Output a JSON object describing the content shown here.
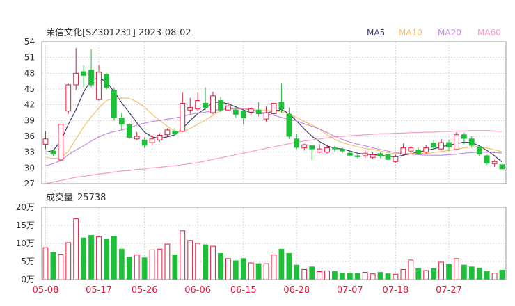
{
  "header": {
    "title": "荣信文化[SZ301231] 2023-08-02",
    "legend": [
      {
        "label": "MA5",
        "color": "#3d3d6b"
      },
      {
        "label": "MA10",
        "color": "#f5c26b"
      },
      {
        "label": "MA20",
        "color": "#c58be0"
      },
      {
        "label": "MA60",
        "color": "#f49ac7"
      }
    ]
  },
  "colors": {
    "up": "#e8173a",
    "down": "#1fbf3a",
    "grid": "#d6d6d6",
    "axis": "#333333"
  },
  "volume_panel": {
    "title_label": "成交量",
    "title_value": "25738"
  },
  "chart_data": [
    {
      "type": "candlestick",
      "title": "荣信文化[SZ301231] 2023-08-02",
      "ylim": [
        27,
        54
      ],
      "yticks": [
        "54",
        "51",
        "48",
        "45",
        "42",
        "39",
        "36",
        "33",
        "30",
        "27"
      ],
      "xticks": [
        {
          "index": 0,
          "label": "05-08"
        },
        {
          "index": 7,
          "label": "05-17"
        },
        {
          "index": 13,
          "label": "05-26"
        },
        {
          "index": 20,
          "label": "06-06"
        },
        {
          "index": 26,
          "label": "06-15"
        },
        {
          "index": 33,
          "label": "06-28"
        },
        {
          "index": 40,
          "label": "07-07"
        },
        {
          "index": 46,
          "label": "07-18"
        },
        {
          "index": 53,
          "label": "07-27"
        }
      ],
      "candles": [
        [
          34.5,
          35.5,
          33.5,
          37.0
        ],
        [
          33.2,
          32.6,
          32.3,
          33.5
        ],
        [
          31.5,
          38.3,
          31.2,
          38.4
        ],
        [
          40.8,
          45.8,
          40.3,
          46.0
        ],
        [
          45.8,
          48.0,
          44.8,
          52.8
        ],
        [
          48.3,
          47.6,
          45.3,
          49.5
        ],
        [
          48.6,
          45.8,
          45.3,
          52.6
        ],
        [
          43.0,
          48.2,
          42.8,
          49.5
        ],
        [
          47.8,
          45.3,
          44.8,
          48.0
        ],
        [
          44.8,
          39.6,
          39.0,
          45.3
        ],
        [
          39.5,
          38.3,
          37.3,
          40.5
        ],
        [
          38.2,
          35.8,
          35.5,
          38.5
        ],
        [
          35.5,
          36.0,
          35.3,
          36.8
        ],
        [
          35.3,
          34.3,
          33.8,
          35.8
        ],
        [
          34.8,
          35.5,
          34.3,
          36.3
        ],
        [
          35.3,
          36.2,
          35.0,
          36.6
        ],
        [
          36.3,
          37.2,
          36.0,
          37.5
        ],
        [
          37.0,
          36.5,
          36.2,
          37.6
        ],
        [
          37.0,
          42.3,
          36.8,
          44.3
        ],
        [
          41.0,
          41.5,
          40.3,
          43.3
        ],
        [
          41.2,
          42.8,
          40.8,
          44.3
        ],
        [
          42.3,
          41.5,
          41.0,
          45.3
        ],
        [
          40.5,
          43.7,
          40.2,
          44.5
        ],
        [
          42.8,
          41.0,
          40.6,
          43.5
        ],
        [
          41.0,
          41.8,
          40.8,
          42.5
        ],
        [
          41.0,
          40.2,
          39.5,
          41.5
        ],
        [
          40.8,
          39.5,
          38.3,
          41.2
        ],
        [
          40.6,
          41.2,
          40.1,
          41.6
        ],
        [
          41.0,
          40.3,
          39.8,
          42.5
        ],
        [
          39.3,
          40.5,
          38.8,
          41.7
        ],
        [
          40.3,
          42.3,
          39.8,
          42.8
        ],
        [
          42.5,
          41.2,
          40.5,
          46.0
        ],
        [
          40.2,
          36.0,
          35.5,
          41.5
        ],
        [
          35.5,
          33.9,
          33.6,
          36.5
        ],
        [
          33.8,
          34.4,
          33.3,
          34.6
        ],
        [
          34.2,
          33.6,
          31.5,
          34.4
        ],
        [
          33.0,
          33.6,
          32.8,
          34.5
        ],
        [
          33.0,
          33.8,
          32.7,
          34.4
        ],
        [
          33.8,
          33.6,
          33.1,
          34.2
        ],
        [
          33.5,
          33.2,
          32.8,
          33.9
        ],
        [
          32.8,
          32.4,
          32.2,
          33.2
        ],
        [
          32.3,
          32.1,
          31.8,
          32.6
        ],
        [
          32.3,
          32.8,
          31.9,
          33.4
        ],
        [
          32.0,
          32.5,
          31.7,
          33.0
        ],
        [
          32.7,
          32.3,
          31.9,
          33.0
        ],
        [
          32.6,
          31.6,
          31.4,
          32.8
        ],
        [
          31.2,
          32.1,
          31.0,
          32.5
        ],
        [
          32.6,
          33.8,
          32.3,
          34.6
        ],
        [
          33.2,
          33.8,
          32.8,
          34.2
        ],
        [
          33.4,
          32.7,
          32.5,
          33.8
        ],
        [
          33.0,
          33.8,
          32.7,
          34.3
        ],
        [
          34.7,
          33.9,
          33.5,
          35.3
        ],
        [
          33.6,
          34.8,
          33.3,
          35.5
        ],
        [
          34.8,
          34.0,
          33.2,
          35.3
        ],
        [
          33.5,
          36.3,
          33.3,
          36.8
        ],
        [
          36.3,
          35.6,
          34.6,
          36.7
        ],
        [
          35.5,
          34.3,
          33.8,
          36.0
        ],
        [
          34.0,
          32.6,
          32.3,
          34.2
        ],
        [
          32.3,
          30.9,
          30.6,
          32.5
        ],
        [
          30.8,
          31.2,
          30.2,
          31.5
        ],
        [
          30.6,
          29.8,
          29.3,
          31.0
        ]
      ],
      "ma": {
        "MA5": [
          33.0,
          33.3,
          35.1,
          38.3,
          41.1,
          44.4,
          46.8,
          47.1,
          46.4,
          44.5,
          42.4,
          40.5,
          38.6,
          36.8,
          35.9,
          35.6,
          35.9,
          36.3,
          37.5,
          39.0,
          40.3,
          41.3,
          42.5,
          42.5,
          42.2,
          41.6,
          41.0,
          40.5,
          40.4,
          40.4,
          40.8,
          41.1,
          40.3,
          38.9,
          37.4,
          36.0,
          35.0,
          34.2,
          33.7,
          33.6,
          33.2,
          32.8,
          32.6,
          32.5,
          32.4,
          32.2,
          32.1,
          32.4,
          32.7,
          33.0,
          33.3,
          33.6,
          34.0,
          34.3,
          34.6,
          34.9,
          34.8,
          34.2,
          33.3,
          32.3,
          31.1
        ],
        "MA10": [
          32.0,
          31.8,
          31.9,
          33.2,
          35.5,
          37.8,
          39.7,
          41.4,
          42.8,
          43.2,
          43.3,
          43.2,
          42.6,
          41.6,
          40.2,
          39.0,
          37.9,
          37.0,
          36.8,
          37.5,
          38.3,
          39.1,
          40.0,
          40.9,
          41.4,
          41.4,
          41.3,
          41.1,
          40.9,
          40.9,
          40.9,
          40.7,
          40.2,
          39.6,
          38.8,
          38.2,
          37.4,
          36.3,
          35.4,
          34.8,
          34.4,
          34.0,
          33.7,
          33.5,
          33.2,
          32.9,
          32.7,
          32.7,
          32.7,
          32.7,
          32.7,
          32.9,
          33.1,
          33.3,
          33.5,
          33.8,
          34.0,
          34.0,
          33.8,
          33.4,
          33.1
        ],
        "MA20": [
          30.4,
          30.8,
          31.4,
          32.5,
          33.4,
          34.2,
          35.1,
          35.9,
          36.5,
          36.9,
          37.2,
          37.6,
          38.1,
          38.5,
          38.8,
          39.0,
          39.3,
          39.5,
          39.8,
          40.2,
          40.4,
          40.6,
          40.9,
          41.1,
          41.2,
          41.2,
          41.2,
          41.0,
          40.7,
          40.3,
          40.0,
          39.6,
          39.2,
          38.9,
          38.4,
          37.9,
          37.4,
          36.7,
          36.0,
          35.4,
          34.9,
          34.5,
          34.2,
          33.8,
          33.5,
          33.2,
          32.9,
          32.7,
          32.6,
          32.5,
          32.4,
          32.4,
          32.4,
          32.5,
          32.6,
          32.8,
          32.9,
          33.0,
          33.0,
          32.9,
          32.8
        ],
        "MA60": [
          27.0,
          27.3,
          27.6,
          27.9,
          28.2,
          28.4,
          28.6,
          28.8,
          29.0,
          29.2,
          29.4,
          29.5,
          29.7,
          29.8,
          30.0,
          30.1,
          30.3,
          30.4,
          30.6,
          30.8,
          31.0,
          31.3,
          31.6,
          31.9,
          32.2,
          32.5,
          32.8,
          33.1,
          33.4,
          33.7,
          34.0,
          34.3,
          34.6,
          34.9,
          35.1,
          35.3,
          35.5,
          35.7,
          35.9,
          36.0,
          36.1,
          36.2,
          36.3,
          36.4,
          36.5,
          36.5,
          36.6,
          36.6,
          36.7,
          36.7,
          36.8,
          36.8,
          36.9,
          36.9,
          37.0,
          37.0,
          37.1,
          37.1,
          37.1,
          37.0,
          36.9
        ]
      }
    },
    {
      "type": "bar",
      "title": "成交量 25738",
      "ylim": [
        0,
        200000
      ],
      "yticks": [
        "20万",
        "15万",
        "10万",
        "5万",
        "0万"
      ],
      "values": [
        88000,
        75000,
        70000,
        102000,
        168000,
        115000,
        122000,
        118000,
        112000,
        120000,
        84000,
        62000,
        68000,
        60000,
        82000,
        84000,
        98000,
        68000,
        135000,
        108000,
        100000,
        96000,
        92000,
        72000,
        58000,
        52000,
        58000,
        46000,
        44000,
        44000,
        68000,
        84000,
        72000,
        40000,
        28000,
        35000,
        22000,
        24000,
        22000,
        18000,
        18000,
        17000,
        20000,
        16000,
        20000,
        16000,
        15000,
        28000,
        54000,
        30000,
        25000,
        30000,
        48000,
        42000,
        58000,
        40000,
        35000,
        32000,
        22000,
        18000,
        26000
      ]
    }
  ]
}
